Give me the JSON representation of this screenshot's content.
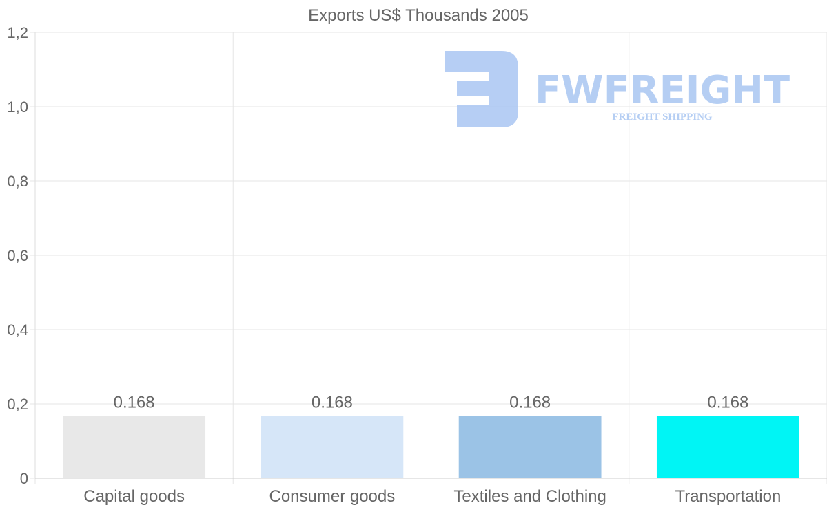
{
  "chart_data": {
    "type": "bar",
    "title": "Exports US$ Thousands 2005",
    "categories": [
      "Capital goods",
      "Consumer goods",
      "Textiles and Clothing",
      "Transportation"
    ],
    "values": [
      0.168,
      0.168,
      0.168,
      0.168
    ],
    "value_labels": [
      "0.168",
      "0.168",
      "0.168",
      "0.168"
    ],
    "colors": [
      "#e8e8e8",
      "#d6e6f8",
      "#9bc3e6",
      "#00f5f5"
    ],
    "yticks": [
      0,
      0.2,
      0.4,
      0.6,
      0.8,
      1.0,
      1.2
    ],
    "ytick_labels": [
      "0",
      "0,2",
      "0,4",
      "0,6",
      "0,8",
      "1,0",
      "1,2"
    ],
    "ylim": [
      0,
      1.2
    ],
    "xlabel": "",
    "ylabel": "",
    "grid": true,
    "legend": "none"
  },
  "watermark": {
    "brand": "FWFREIGHT",
    "tagline": "FREIGHT SHIPPING",
    "color": "#a9c6f2"
  }
}
